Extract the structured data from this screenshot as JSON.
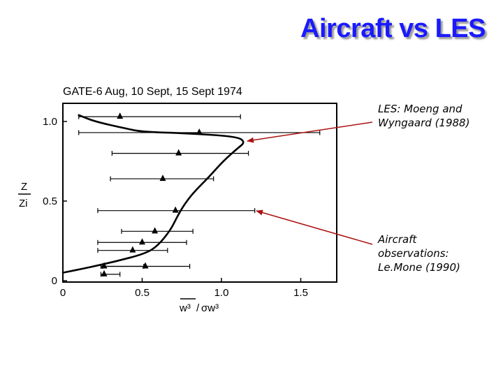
{
  "slide": {
    "title": "Aircraft vs LES"
  },
  "annotations": {
    "les": [
      "LES: Moeng and",
      "Wyngaard (1988)"
    ],
    "aircraft": [
      "Aircraft",
      "observations:",
      "Le.Mone (1990)"
    ]
  },
  "colors": {
    "title": "#1a1aff",
    "arrow": "#aa1111",
    "ink": "#000000"
  },
  "chart_data": {
    "type": "scatter",
    "title": "GATE-6 Aug, 10 Sept, 15 Sept 1974",
    "xlabel_numerator": "w³",
    "xlabel_denominator": "σw³",
    "ylabel_numerator": "Z",
    "ylabel_denominator": "Zi",
    "xlim": [
      0,
      1.7
    ],
    "ylim": [
      0,
      1.08
    ],
    "xticks": [
      "0",
      "0.5",
      "1.0",
      "1.5"
    ],
    "yticks": [
      "0",
      "0.5",
      "1.0"
    ],
    "series": [
      {
        "kind": "line",
        "points": [
          [
            0.0,
            0.05
          ],
          [
            0.15,
            0.08
          ],
          [
            0.33,
            0.12
          ],
          [
            0.52,
            0.17
          ],
          [
            0.6,
            0.22
          ],
          [
            0.68,
            0.32
          ],
          [
            0.72,
            0.4
          ],
          [
            0.76,
            0.47
          ],
          [
            0.82,
            0.55
          ],
          [
            0.92,
            0.65
          ],
          [
            1.01,
            0.75
          ],
          [
            1.1,
            0.83
          ],
          [
            1.15,
            0.87
          ],
          [
            1.1,
            0.905
          ],
          [
            0.8,
            0.925
          ],
          [
            0.5,
            0.935
          ],
          [
            0.4,
            0.955
          ],
          [
            0.2,
            1.0
          ],
          [
            0.1,
            1.04
          ]
        ]
      },
      {
        "kind": "points_with_xerror",
        "points": [
          {
            "x": 0.36,
            "y": 1.03,
            "xmin": 0.1,
            "xmax": 1.12
          },
          {
            "x": 0.86,
            "y": 0.93,
            "xmin": 0.1,
            "xmax": 1.62
          },
          {
            "x": 0.73,
            "y": 0.8,
            "xmin": 0.31,
            "xmax": 1.17
          },
          {
            "x": 0.63,
            "y": 0.64,
            "xmin": 0.3,
            "xmax": 0.95
          },
          {
            "x": 0.71,
            "y": 0.44,
            "xmin": 0.22,
            "xmax": 1.21
          },
          {
            "x": 0.58,
            "y": 0.31,
            "xmin": 0.37,
            "xmax": 0.82
          },
          {
            "x": 0.5,
            "y": 0.24,
            "xmin": 0.22,
            "xmax": 0.78
          },
          {
            "x": 0.44,
            "y": 0.19,
            "xmin": 0.22,
            "xmax": 0.66
          },
          {
            "x": 0.52,
            "y": 0.09,
            "xmin": 0.25,
            "xmax": 0.8
          },
          {
            "x": 0.26,
            "y": 0.09,
            "xmin": 0.24,
            "xmax": 0.51
          },
          {
            "x": 0.26,
            "y": 0.04,
            "xmin": 0.24,
            "xmax": 0.36
          }
        ]
      }
    ]
  }
}
